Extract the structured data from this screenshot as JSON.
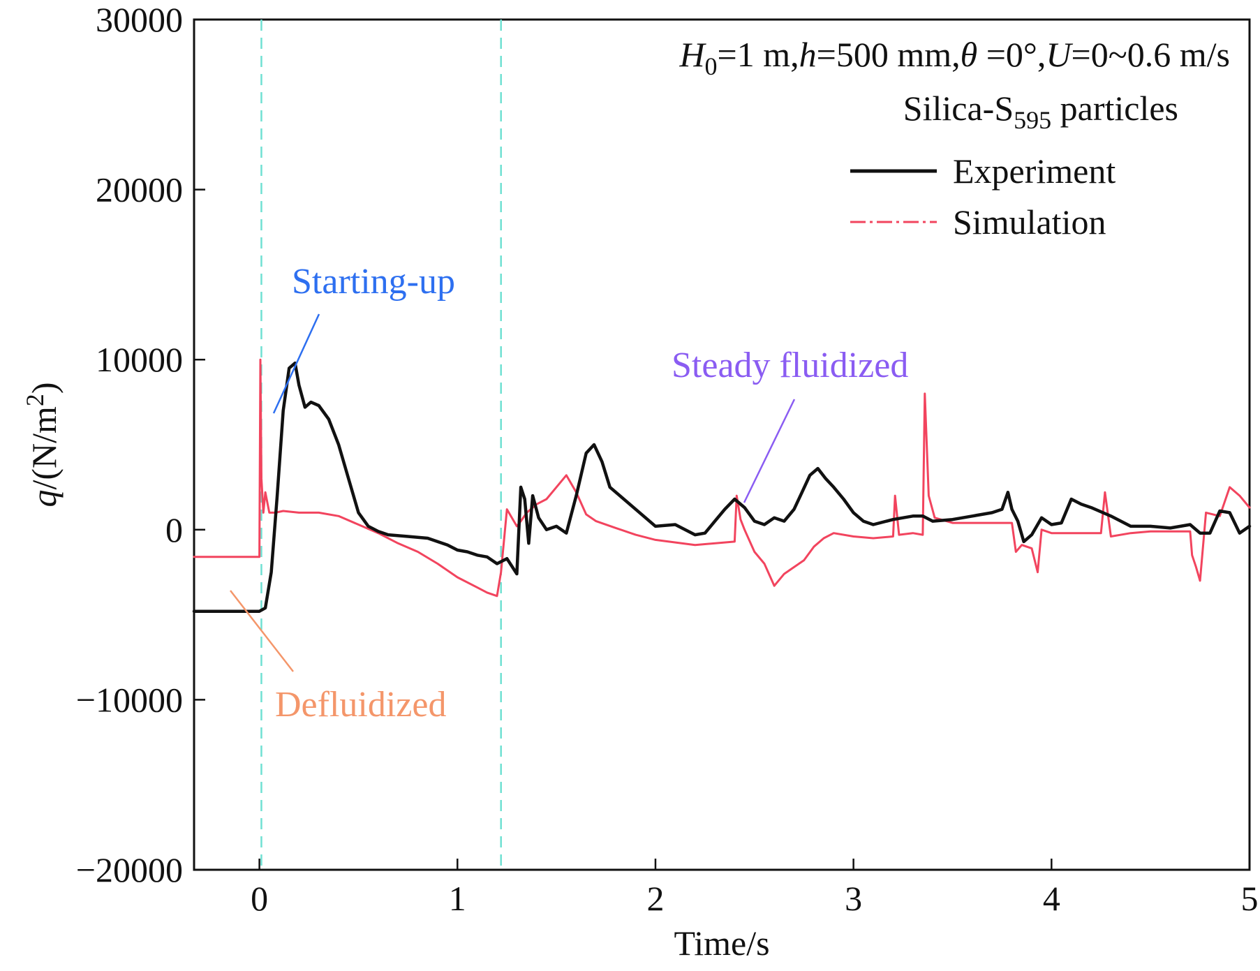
{
  "chart_data": {
    "type": "line",
    "xlabel": "Time/s",
    "ylabel": {
      "symbol": "q",
      "unit": "/(N/m",
      "sup": "2",
      "close": ")"
    },
    "xlim": [
      -0.33,
      5
    ],
    "ylim": [
      -20000,
      30000
    ],
    "x_ticks": [
      0,
      1,
      2,
      3,
      4,
      5
    ],
    "x_tick_labels": [
      "0",
      "1",
      "2",
      "3",
      "4",
      "5"
    ],
    "y_ticks": [
      -20000,
      -10000,
      0,
      10000,
      20000,
      30000
    ],
    "y_tick_labels": [
      "−20000",
      "−10000",
      "0",
      "10000",
      "20000",
      "30000"
    ],
    "grid": false,
    "phase_lines": [
      {
        "x": 0.01,
        "color": "#6fe0d2"
      },
      {
        "x": 1.22,
        "color": "#6fe0d2"
      }
    ],
    "conditions": {
      "h0_sym": "H",
      "h0_sub": "0",
      "h0_val": "=1 m,",
      "h_sym": "h",
      "h_val": "=500 mm,",
      "theta_sym": "θ",
      "theta_val": " =0°,",
      "u_sym": "U",
      "u_val": "=0~0.6 m/s"
    },
    "particles": {
      "prefix": "Silica-S",
      "sub": "595",
      "suffix": " particles"
    },
    "legend_position": "top-right",
    "series": [
      {
        "name": "Experiment",
        "color": "#111111",
        "style": "solid",
        "x": [
          -0.33,
          0.0,
          0.03,
          0.06,
          0.09,
          0.12,
          0.15,
          0.18,
          0.2,
          0.23,
          0.26,
          0.3,
          0.35,
          0.4,
          0.45,
          0.5,
          0.55,
          0.6,
          0.65,
          0.75,
          0.85,
          0.95,
          1.0,
          1.05,
          1.1,
          1.15,
          1.2,
          1.25,
          1.3,
          1.32,
          1.34,
          1.36,
          1.38,
          1.41,
          1.45,
          1.5,
          1.55,
          1.6,
          1.65,
          1.69,
          1.73,
          1.77,
          1.82,
          1.9,
          2.0,
          2.1,
          2.2,
          2.25,
          2.3,
          2.35,
          2.4,
          2.45,
          2.5,
          2.55,
          2.6,
          2.65,
          2.7,
          2.74,
          2.78,
          2.82,
          2.86,
          2.9,
          2.95,
          3.0,
          3.05,
          3.1,
          3.2,
          3.3,
          3.35,
          3.4,
          3.5,
          3.6,
          3.7,
          3.75,
          3.78,
          3.8,
          3.83,
          3.86,
          3.9,
          3.95,
          4.0,
          4.05,
          4.1,
          4.15,
          4.2,
          4.3,
          4.4,
          4.5,
          4.6,
          4.7,
          4.75,
          4.8,
          4.85,
          4.9,
          4.95,
          5.0
        ],
        "y": [
          -4800,
          -4800,
          -4600,
          -2500,
          2000,
          7000,
          9500,
          9800,
          8500,
          7200,
          7500,
          7300,
          6500,
          5000,
          3000,
          1000,
          200,
          -100,
          -300,
          -400,
          -500,
          -900,
          -1200,
          -1300,
          -1500,
          -1600,
          -2000,
          -1700,
          -2600,
          2500,
          1800,
          -800,
          2000,
          700,
          0,
          200,
          -200,
          2000,
          4500,
          5000,
          4000,
          2500,
          2000,
          1200,
          200,
          300,
          -300,
          -200,
          500,
          1200,
          1800,
          1300,
          500,
          300,
          700,
          500,
          1200,
          2200,
          3200,
          3600,
          3000,
          2500,
          1800,
          1000,
          500,
          300,
          600,
          800,
          800,
          500,
          600,
          800,
          1000,
          1200,
          2200,
          1200,
          500,
          -700,
          -300,
          700,
          300,
          400,
          1800,
          1500,
          1300,
          800,
          200,
          200,
          100,
          300,
          -200,
          -200,
          1100,
          1000,
          -200,
          200
        ]
      },
      {
        "name": "Simulation",
        "color": "#f2445e",
        "style": "dashdot",
        "x": [
          -0.33,
          0.0,
          0.005,
          0.01,
          0.02,
          0.03,
          0.05,
          0.08,
          0.12,
          0.2,
          0.3,
          0.4,
          0.5,
          0.6,
          0.7,
          0.8,
          0.9,
          1.0,
          1.1,
          1.15,
          1.2,
          1.22,
          1.25,
          1.3,
          1.32,
          1.35,
          1.4,
          1.45,
          1.5,
          1.55,
          1.6,
          1.65,
          1.7,
          1.8,
          1.9,
          2.0,
          2.2,
          2.4,
          2.41,
          2.43,
          2.45,
          2.5,
          2.55,
          2.6,
          2.65,
          2.7,
          2.75,
          2.8,
          2.85,
          2.9,
          3.0,
          3.1,
          3.2,
          3.21,
          3.23,
          3.3,
          3.35,
          3.36,
          3.38,
          3.41,
          3.5,
          3.6,
          3.7,
          3.8,
          3.82,
          3.85,
          3.9,
          3.93,
          3.95,
          4.0,
          4.2,
          4.25,
          4.27,
          4.3,
          4.4,
          4.5,
          4.6,
          4.7,
          4.71,
          4.73,
          4.75,
          4.78,
          4.85,
          4.9,
          4.95,
          5.0
        ],
        "y": [
          -1600,
          -1600,
          10000,
          3000,
          1000,
          2200,
          1000,
          1000,
          1100,
          1000,
          1000,
          800,
          300,
          -200,
          -800,
          -1300,
          -2000,
          -2800,
          -3400,
          -3700,
          -3900,
          -2500,
          1200,
          200,
          500,
          1000,
          1500,
          1800,
          2500,
          3200,
          2200,
          900,
          500,
          100,
          -300,
          -600,
          -900,
          -700,
          2000,
          600,
          0,
          -1300,
          -2000,
          -3300,
          -2600,
          -2200,
          -1800,
          -1000,
          -500,
          -200,
          -400,
          -500,
          -400,
          2000,
          -300,
          -200,
          -300,
          8000,
          2000,
          700,
          400,
          400,
          400,
          400,
          -1300,
          -900,
          -1100,
          -2500,
          0,
          -200,
          -200,
          -200,
          2200,
          -400,
          -200,
          -100,
          -100,
          -100,
          -1500,
          -2200,
          -3000,
          1000,
          800,
          2500,
          2000,
          1300
        ]
      }
    ],
    "annotations": [
      {
        "id": "starting-up",
        "text": "Starting-up",
        "color": "#2d6ff0"
      },
      {
        "id": "steady-fluidized",
        "text": "Steady fluidized",
        "color": "#8a5cf2"
      },
      {
        "id": "defluidized",
        "text": "Defluidized",
        "color": "#f4966a"
      }
    ]
  }
}
